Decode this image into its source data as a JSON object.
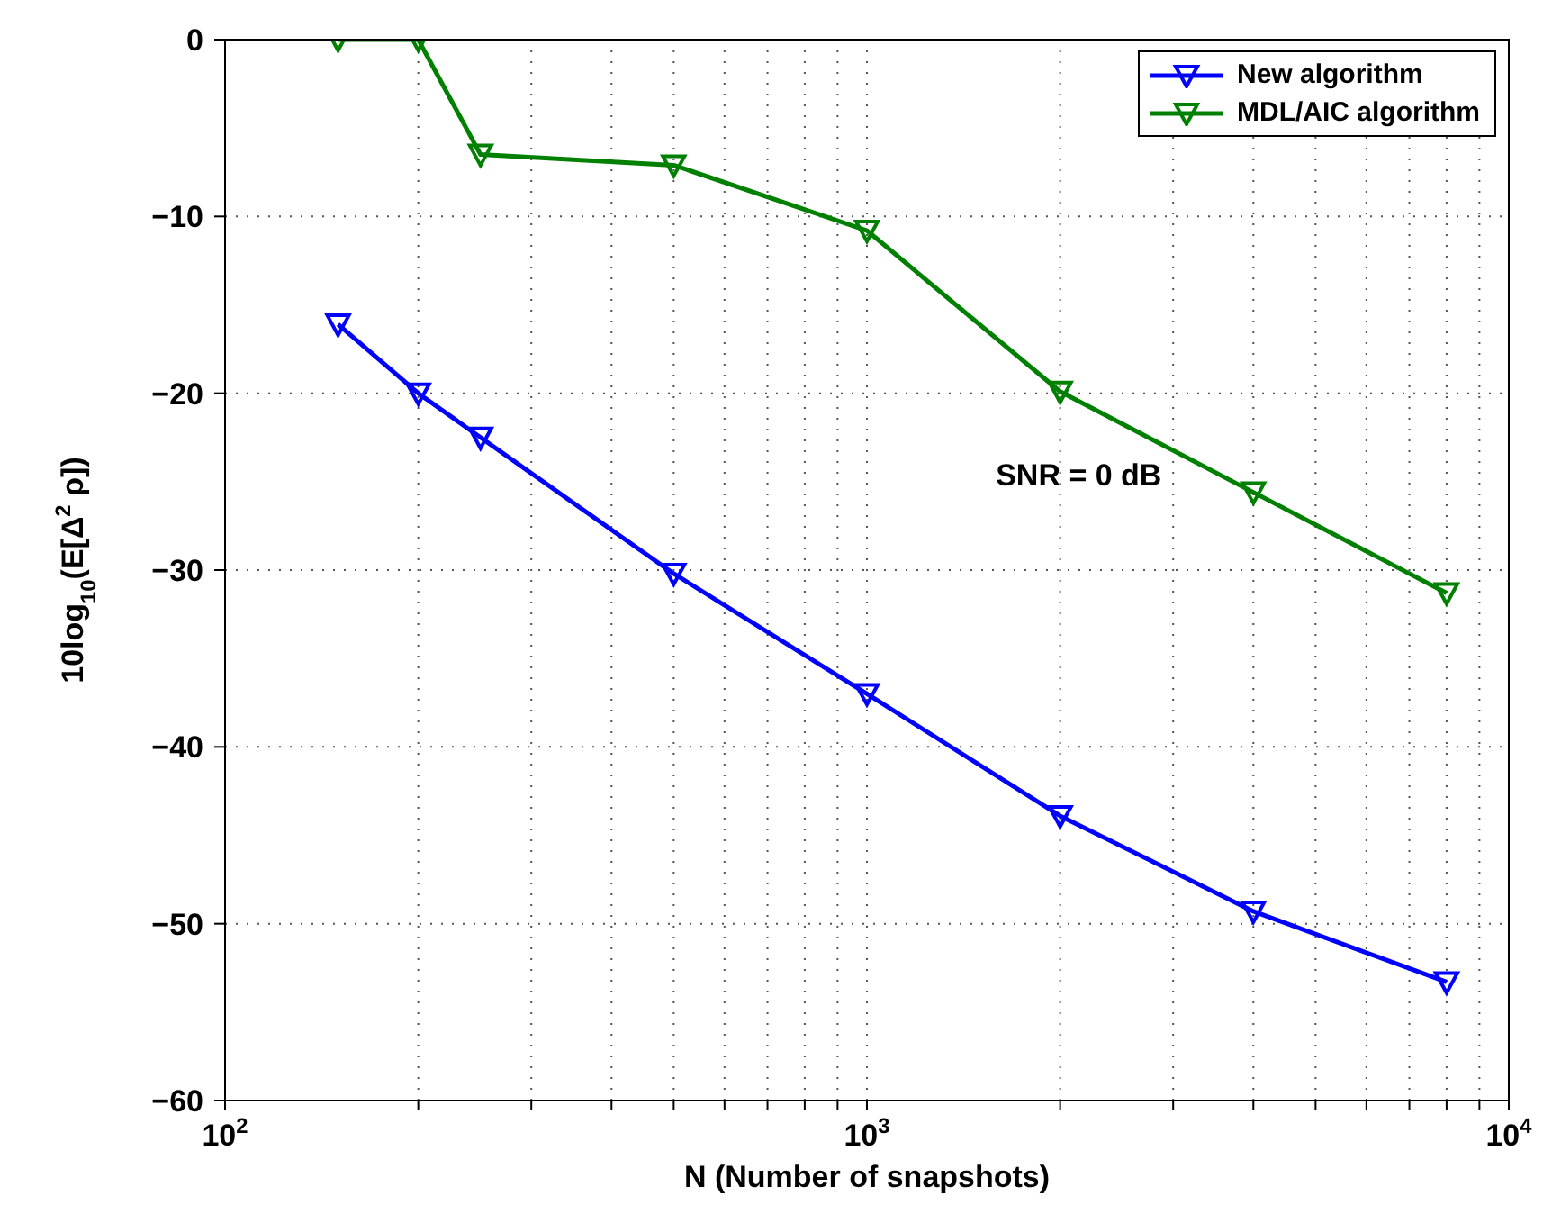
{
  "chart_data": {
    "type": "line",
    "xlabel": "N (Number of snapshots)",
    "ylabel": "10log$_{10}$(E[Δ$^{2}$ ρ])",
    "x": [
      150,
      200,
      250,
      500,
      1000,
      2000,
      4000,
      8000
    ],
    "series": [
      {
        "name": "New algorithm",
        "color": "#0000ff",
        "values": [
          -16.1,
          -20.0,
          -22.5,
          -30.2,
          -37.0,
          -43.9,
          -49.3,
          -53.3
        ]
      },
      {
        "name": "MDL/AIC algorithm",
        "color": "#008000",
        "values": [
          0,
          0,
          -6.5,
          -7.1,
          -10.8,
          -19.9,
          -25.6,
          -31.3
        ]
      }
    ],
    "log": "x",
    "xlim": [
      100,
      10000
    ],
    "xticks": [
      {
        "value": 100,
        "label": "10$^{2}$"
      },
      {
        "value": 200,
        "label": null
      },
      {
        "value": 300,
        "label": null
      },
      {
        "value": 400,
        "label": null
      },
      {
        "value": 500,
        "label": null
      },
      {
        "value": 600,
        "label": null
      },
      {
        "value": 700,
        "label": null
      },
      {
        "value": 800,
        "label": null
      },
      {
        "value": 900,
        "label": null
      },
      {
        "value": 1000,
        "label": "10$^{3}$"
      },
      {
        "value": 2000,
        "label": null
      },
      {
        "value": 3000,
        "label": null
      },
      {
        "value": 4000,
        "label": null
      },
      {
        "value": 5000,
        "label": null
      },
      {
        "value": 6000,
        "label": null
      },
      {
        "value": 7000,
        "label": null
      },
      {
        "value": 8000,
        "label": null
      },
      {
        "value": 9000,
        "label": null
      },
      {
        "value": 10000,
        "label": "10$^{4}$"
      }
    ],
    "ylim": [
      -60,
      0
    ],
    "yticks": [
      -60,
      -50,
      -40,
      -30,
      -20,
      -10,
      0
    ],
    "grid": true,
    "legend": "top right",
    "marker": "triangle",
    "line_style": "solid",
    "annotations": [
      "SNR = 0 dB"
    ]
  }
}
